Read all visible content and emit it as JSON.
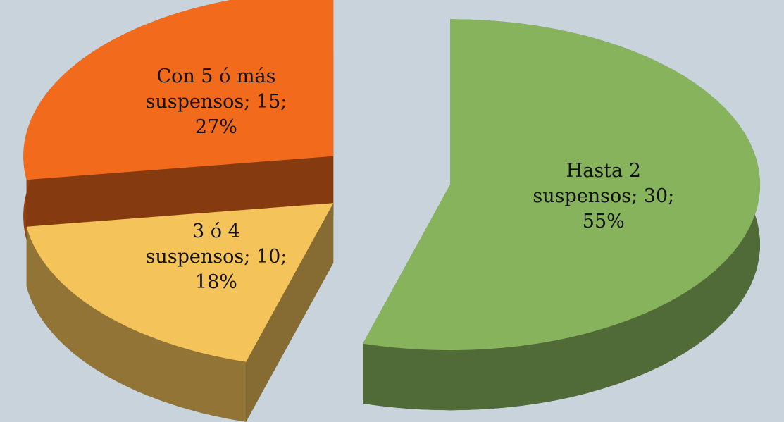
{
  "chart_data": {
    "type": "pie3d",
    "values": [
      30,
      10,
      15
    ],
    "value_labels": [
      "Hasta 2 suspensos; 30; 55%",
      "3 ó 4 suspensos; 10; 18%",
      "Con 5 ó más suspensos; 15; 27%"
    ],
    "colors": [
      "#86b35c",
      "#f4c35a",
      "#f26a1c"
    ]
  }
}
